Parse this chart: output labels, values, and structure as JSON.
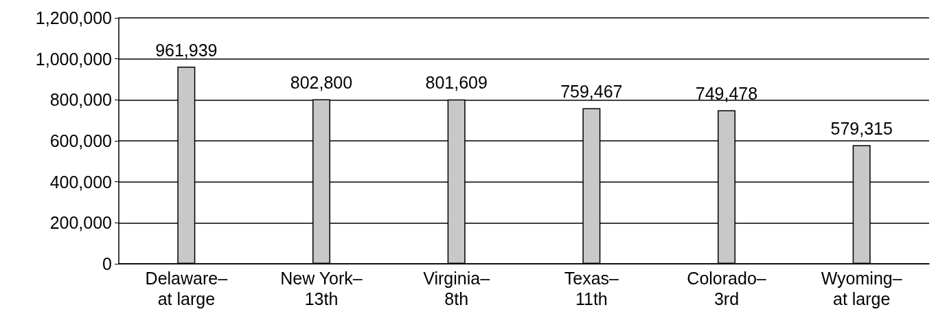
{
  "chart_data": {
    "type": "bar",
    "categories": [
      "Delaware–\nat large",
      "New York–\n13th",
      "Virginia–\n8th",
      "Texas–\n11th",
      "Colorado–\n3rd",
      "Wyoming–\nat large"
    ],
    "values": [
      961939,
      802800,
      801609,
      759467,
      749478,
      579315
    ],
    "value_labels": [
      "961,939",
      "802,800",
      "801,609",
      "759,467",
      "749,478",
      "579,315"
    ],
    "color": "#c8c8c8",
    "ylim": [
      0,
      1200000
    ],
    "yticks": [
      0,
      {
        "value": 200000,
        "label": "200,000"
      },
      {
        "value": 400000,
        "label": "400,000"
      },
      {
        "value": 600000,
        "label": "600,000"
      },
      {
        "value": 800000,
        "label": "800,000"
      },
      {
        "value": 1000000,
        "label": "1,000,000"
      },
      {
        "value": 1200000,
        "label": "1,200,000"
      }
    ],
    "grid": "y"
  }
}
